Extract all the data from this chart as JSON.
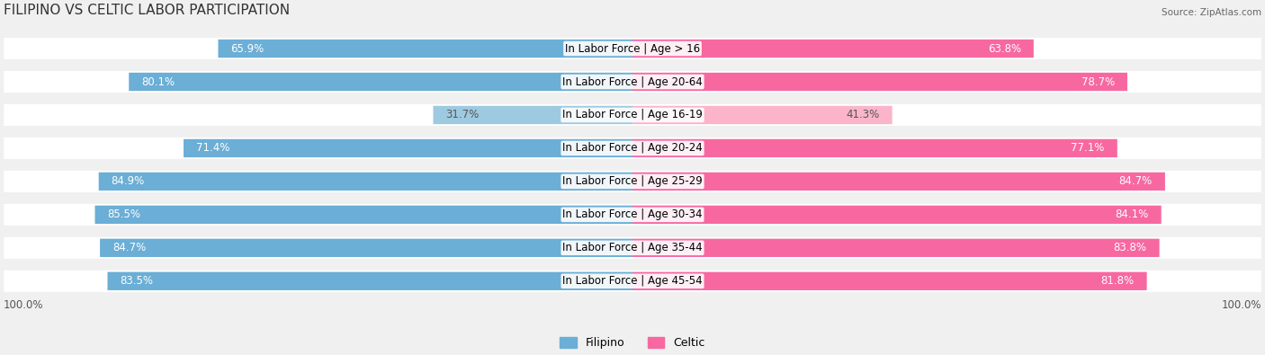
{
  "title": "FILIPINO VS CELTIC LABOR PARTICIPATION",
  "source": "Source: ZipAtlas.com",
  "categories": [
    "In Labor Force | Age > 16",
    "In Labor Force | Age 20-64",
    "In Labor Force | Age 16-19",
    "In Labor Force | Age 20-24",
    "In Labor Force | Age 25-29",
    "In Labor Force | Age 30-34",
    "In Labor Force | Age 35-44",
    "In Labor Force | Age 45-54"
  ],
  "filipino_values": [
    65.9,
    80.1,
    31.7,
    71.4,
    84.9,
    85.5,
    84.7,
    83.5
  ],
  "celtic_values": [
    63.8,
    78.7,
    41.3,
    77.1,
    84.7,
    84.1,
    83.8,
    81.8
  ],
  "filipino_color": "#6baed6",
  "celtic_color": "#f768a1",
  "filipino_color_light": "#9ecae1",
  "celtic_color_light": "#fbb4c9",
  "bar_height": 0.55,
  "background_color": "#f0f0f0",
  "row_bg_color": "#ffffff",
  "max_value": 100.0,
  "label_fontsize": 8.5,
  "title_fontsize": 11,
  "legend_fontsize": 9,
  "bottom_label": "100.0%"
}
